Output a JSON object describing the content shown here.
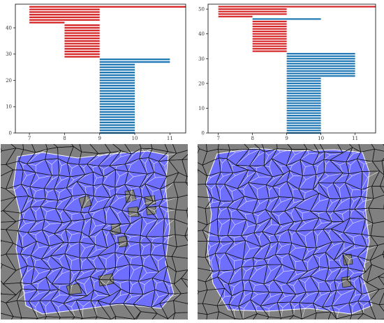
{
  "chart_data": [
    {
      "type": "bar",
      "orientation": "horizontal",
      "title": "",
      "xlabel": "",
      "ylabel": "",
      "xlim": [
        6.6,
        11.45
      ],
      "ylim": [
        0,
        49
      ],
      "xticks": [
        "7",
        "8",
        "9",
        "10",
        "11"
      ],
      "yticks": [
        "0",
        "10",
        "20",
        "30",
        "40"
      ],
      "grid": false,
      "series": [
        {
          "color": "#d62728",
          "bars": [
            {
              "y": 48,
              "x_start": 7,
              "x_end": 11.45
            },
            {
              "y": 47,
              "x_start": 7,
              "x_end": 9
            },
            {
              "y": 46,
              "x_start": 7,
              "x_end": 9
            },
            {
              "y": 45,
              "x_start": 7,
              "x_end": 9
            },
            {
              "y": 44,
              "x_start": 7,
              "x_end": 9
            },
            {
              "y": 43,
              "x_start": 7,
              "x_end": 9
            },
            {
              "y": 42,
              "x_start": 7,
              "x_end": 8
            },
            {
              "y": 41,
              "x_start": 8,
              "x_end": 9
            },
            {
              "y": 40,
              "x_start": 8,
              "x_end": 9
            },
            {
              "y": 39,
              "x_start": 8,
              "x_end": 9
            },
            {
              "y": 38,
              "x_start": 8,
              "x_end": 9
            },
            {
              "y": 37,
              "x_start": 8,
              "x_end": 9
            },
            {
              "y": 36,
              "x_start": 8,
              "x_end": 9
            },
            {
              "y": 35,
              "x_start": 8,
              "x_end": 9
            },
            {
              "y": 34,
              "x_start": 8,
              "x_end": 9
            },
            {
              "y": 33,
              "x_start": 8,
              "x_end": 9
            },
            {
              "y": 32,
              "x_start": 8,
              "x_end": 9
            },
            {
              "y": 31,
              "x_start": 8,
              "x_end": 9
            },
            {
              "y": 30,
              "x_start": 8,
              "x_end": 9
            },
            {
              "y": 29,
              "x_start": 8,
              "x_end": 9
            }
          ]
        },
        {
          "color": "#1f77b4",
          "bars": [
            {
              "y": 28,
              "x_start": 9,
              "x_end": 11
            },
            {
              "y": 27,
              "x_start": 9,
              "x_end": 11
            },
            {
              "y": 26,
              "x_start": 9,
              "x_end": 10
            },
            {
              "y": 25,
              "x_start": 9,
              "x_end": 10
            },
            {
              "y": 24,
              "x_start": 9,
              "x_end": 10
            },
            {
              "y": 23,
              "x_start": 9,
              "x_end": 10
            },
            {
              "y": 22,
              "x_start": 9,
              "x_end": 10
            },
            {
              "y": 21,
              "x_start": 9,
              "x_end": 10
            },
            {
              "y": 20,
              "x_start": 9,
              "x_end": 10
            },
            {
              "y": 19,
              "x_start": 9,
              "x_end": 10
            },
            {
              "y": 18,
              "x_start": 9,
              "x_end": 10
            },
            {
              "y": 17,
              "x_start": 9,
              "x_end": 10
            },
            {
              "y": 16,
              "x_start": 9,
              "x_end": 10
            },
            {
              "y": 15,
              "x_start": 9,
              "x_end": 10
            },
            {
              "y": 14,
              "x_start": 9,
              "x_end": 10
            },
            {
              "y": 13,
              "x_start": 9,
              "x_end": 10
            },
            {
              "y": 12,
              "x_start": 9,
              "x_end": 10
            },
            {
              "y": 11,
              "x_start": 9,
              "x_end": 10
            },
            {
              "y": 10,
              "x_start": 9,
              "x_end": 10
            },
            {
              "y": 9,
              "x_start": 9,
              "x_end": 10
            },
            {
              "y": 8,
              "x_start": 9,
              "x_end": 10
            },
            {
              "y": 7,
              "x_start": 9,
              "x_end": 10
            },
            {
              "y": 6,
              "x_start": 9,
              "x_end": 10
            },
            {
              "y": 5,
              "x_start": 9,
              "x_end": 10
            },
            {
              "y": 4,
              "x_start": 9,
              "x_end": 10
            },
            {
              "y": 3,
              "x_start": 9,
              "x_end": 10
            },
            {
              "y": 2,
              "x_start": 9,
              "x_end": 10
            },
            {
              "y": 1,
              "x_start": 9,
              "x_end": 10
            },
            {
              "y": 0,
              "x_start": 9,
              "x_end": 10
            }
          ]
        }
      ]
    },
    {
      "type": "bar",
      "orientation": "horizontal",
      "title": "",
      "xlabel": "",
      "ylabel": "",
      "xlim": [
        6.7,
        11.6
      ],
      "ylim": [
        0,
        52
      ],
      "xticks": [
        "7",
        "8",
        "9",
        "10",
        "11"
      ],
      "yticks": [
        "0",
        "10",
        "20",
        "30",
        "40",
        "50"
      ],
      "grid": false,
      "series": [
        {
          "color": "#d62728",
          "bars": [
            {
              "y": 51,
              "x_start": 7,
              "x_end": 11.6
            },
            {
              "y": 50,
              "x_start": 7,
              "x_end": 9
            },
            {
              "y": 49,
              "x_start": 7,
              "x_end": 9
            },
            {
              "y": 48,
              "x_start": 7,
              "x_end": 9
            },
            {
              "y": 47,
              "x_start": 7,
              "x_end": 8
            },
            {
              "y": 45,
              "x_start": 8,
              "x_end": 9
            },
            {
              "y": 44,
              "x_start": 8,
              "x_end": 9
            },
            {
              "y": 43,
              "x_start": 8,
              "x_end": 9
            },
            {
              "y": 42,
              "x_start": 8,
              "x_end": 9
            },
            {
              "y": 41,
              "x_start": 8,
              "x_end": 9
            },
            {
              "y": 40,
              "x_start": 8,
              "x_end": 9
            },
            {
              "y": 39,
              "x_start": 8,
              "x_end": 9
            },
            {
              "y": 38,
              "x_start": 8,
              "x_end": 9
            },
            {
              "y": 37,
              "x_start": 8,
              "x_end": 9
            },
            {
              "y": 36,
              "x_start": 8,
              "x_end": 9
            },
            {
              "y": 35,
              "x_start": 8,
              "x_end": 9
            },
            {
              "y": 34,
              "x_start": 8,
              "x_end": 9
            },
            {
              "y": 33,
              "x_start": 8,
              "x_end": 9
            }
          ]
        },
        {
          "color": "#1f77b4",
          "bars": [
            {
              "y": 46,
              "x_start": 8,
              "x_end": 10
            },
            {
              "y": 32,
              "x_start": 9,
              "x_end": 11
            },
            {
              "y": 31,
              "x_start": 9,
              "x_end": 11
            },
            {
              "y": 30,
              "x_start": 9,
              "x_end": 11
            },
            {
              "y": 29,
              "x_start": 9,
              "x_end": 11
            },
            {
              "y": 28,
              "x_start": 9,
              "x_end": 11
            },
            {
              "y": 27,
              "x_start": 9,
              "x_end": 11
            },
            {
              "y": 26,
              "x_start": 9,
              "x_end": 11
            },
            {
              "y": 25,
              "x_start": 9,
              "x_end": 11
            },
            {
              "y": 24,
              "x_start": 9,
              "x_end": 11
            },
            {
              "y": 23,
              "x_start": 9,
              "x_end": 11
            },
            {
              "y": 22,
              "x_start": 9,
              "x_end": 10
            },
            {
              "y": 21,
              "x_start": 9,
              "x_end": 10
            },
            {
              "y": 20,
              "x_start": 9,
              "x_end": 10
            },
            {
              "y": 19,
              "x_start": 9,
              "x_end": 10
            },
            {
              "y": 18,
              "x_start": 9,
              "x_end": 10
            },
            {
              "y": 17,
              "x_start": 9,
              "x_end": 10
            },
            {
              "y": 16,
              "x_start": 9,
              "x_end": 10
            },
            {
              "y": 15,
              "x_start": 9,
              "x_end": 10
            },
            {
              "y": 14,
              "x_start": 9,
              "x_end": 10
            },
            {
              "y": 13,
              "x_start": 9,
              "x_end": 10
            },
            {
              "y": 12,
              "x_start": 9,
              "x_end": 10
            },
            {
              "y": 11,
              "x_start": 9,
              "x_end": 10
            },
            {
              "y": 10,
              "x_start": 9,
              "x_end": 10
            },
            {
              "y": 9,
              "x_start": 9,
              "x_end": 10
            },
            {
              "y": 8,
              "x_start": 9,
              "x_end": 10
            },
            {
              "y": 7,
              "x_start": 9,
              "x_end": 10
            },
            {
              "y": 6,
              "x_start": 9,
              "x_end": 10
            },
            {
              "y": 5,
              "x_start": 9,
              "x_end": 10
            },
            {
              "y": 4,
              "x_start": 9,
              "x_end": 10
            },
            {
              "y": 3,
              "x_start": 9,
              "x_end": 10
            },
            {
              "y": 2,
              "x_start": 9,
              "x_end": 10
            },
            {
              "y": 1,
              "x_start": 9,
              "x_end": 10
            },
            {
              "y": 0,
              "x_start": 9,
              "x_end": 10
            }
          ]
        }
      ]
    }
  ],
  "mesh_images": {
    "colors": {
      "background": "#808080",
      "cell_outline": "#111111",
      "region_fill": "#6e6eff",
      "region_edge": "#ffffff"
    }
  }
}
